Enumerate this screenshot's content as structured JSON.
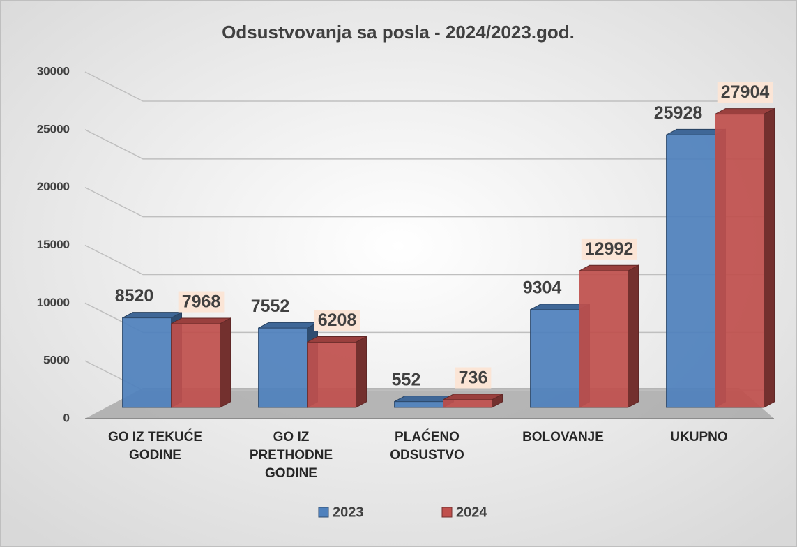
{
  "chart_data": {
    "type": "bar3d",
    "title": "Odsustvovanja sa posla - 2024/2023.god.",
    "categories": [
      "GO IZ TEKUĆE GODINE",
      "GO IZ PRETHODNE GODINE",
      "PLAĆENO ODSUSTVO",
      "BOLOVANJE",
      "UKUPNO"
    ],
    "series": [
      {
        "name": "2023",
        "color": "#4f81bd",
        "values": [
          8520,
          7552,
          552,
          9304,
          25928
        ]
      },
      {
        "name": "2024",
        "color": "#c0504d",
        "values": [
          7968,
          6208,
          736,
          12992,
          27904
        ]
      }
    ],
    "ylim": [
      0,
      30000
    ],
    "yticks": [
      0,
      5000,
      10000,
      15000,
      20000,
      25000,
      30000
    ],
    "grid": true,
    "legend": "bottom"
  }
}
